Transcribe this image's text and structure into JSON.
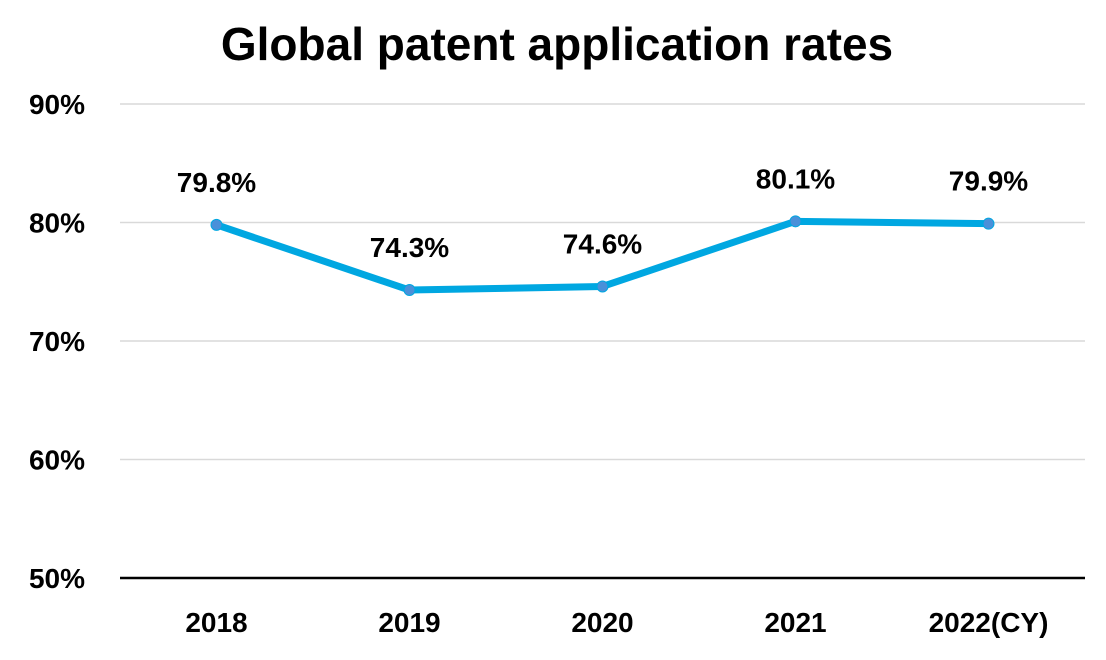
{
  "chart_data": {
    "type": "line",
    "title": "Global patent application rates",
    "categories": [
      "2018",
      "2019",
      "2020",
      "2021",
      "2022(CY)"
    ],
    "series": [
      {
        "name": "Global patent application rate",
        "values": [
          79.8,
          74.3,
          74.6,
          80.1,
          79.9
        ],
        "labels": [
          "79.8%",
          "74.3%",
          "74.6%",
          "80.1%",
          "79.9%"
        ]
      }
    ],
    "ylim": [
      50,
      90
    ],
    "yticks": [
      50,
      60,
      70,
      80,
      90
    ],
    "ytick_labels": [
      "50%",
      "60%",
      "70%",
      "80%",
      "90%"
    ],
    "xlabel": "",
    "ylabel": "",
    "grid": true,
    "legend": "none",
    "colors": {
      "line": "#00a7e1",
      "marker": "#4a90d9",
      "grid": "#d9d9d9",
      "axis": "#000000"
    }
  }
}
